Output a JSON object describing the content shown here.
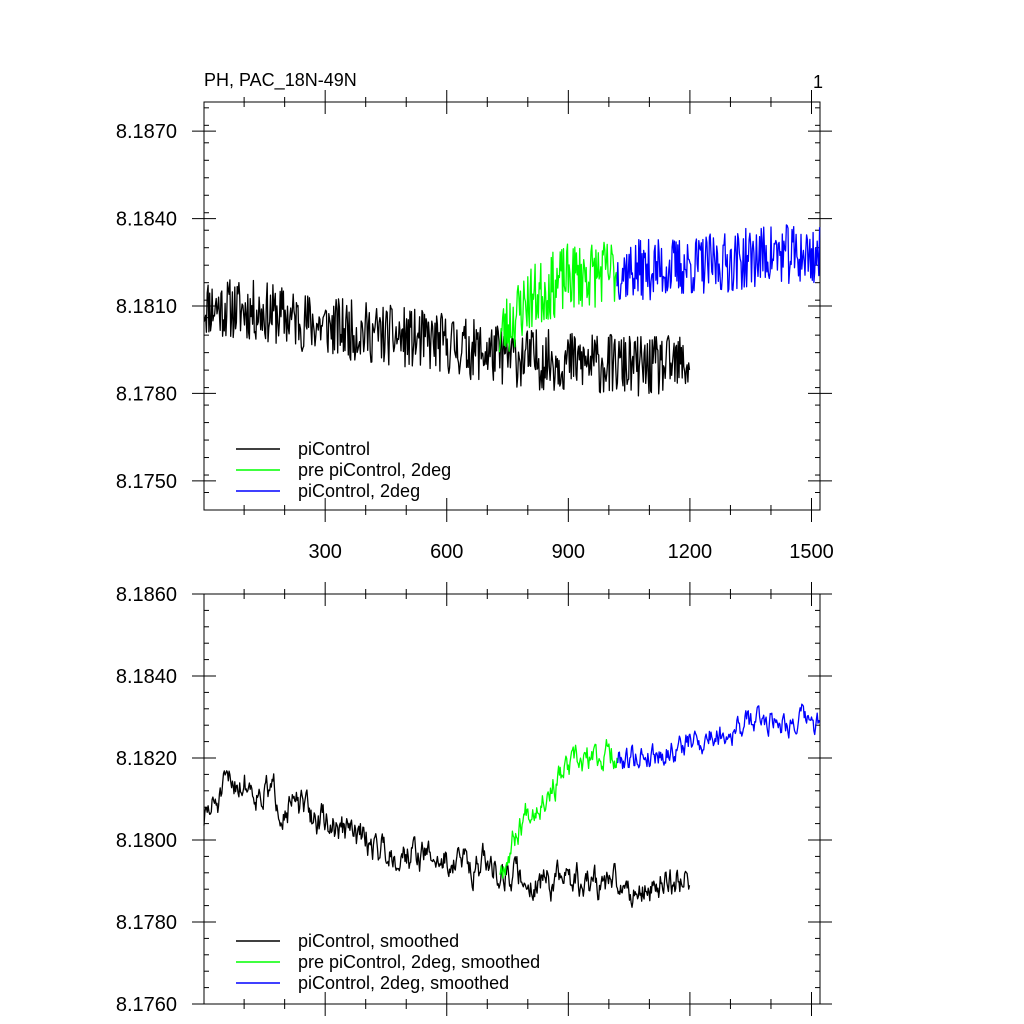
{
  "title": "PH, PAC_18N-49N",
  "panel_label": "1",
  "colors": {
    "piControl": "#000000",
    "pre_piControl_2deg": "#00ff00",
    "piControl_2deg": "#0000ff"
  },
  "chart_data": [
    {
      "type": "line",
      "title": "PH, PAC_18N-49N",
      "xlim": [
        1,
        1521
      ],
      "ylim": [
        8.174,
        8.188
      ],
      "x_ticks": [
        300,
        600,
        900,
        1200,
        1500
      ],
      "y_ticks": [
        8.175,
        8.178,
        8.181,
        8.184,
        8.187
      ],
      "y_tick_labels": [
        "8.1750",
        "8.1780",
        "8.1810",
        "8.1840",
        "8.1870"
      ],
      "x_tick_labels": [
        "300",
        "600",
        "900",
        "1200",
        "1500"
      ],
      "legend": [
        "piControl",
        "pre piControl, 2deg",
        "piControl, 2deg"
      ],
      "legend_position": "bottom-left",
      "series": [
        {
          "name": "piControl",
          "color": "#000000",
          "noise": 0.00105,
          "seed": 11,
          "anchors": [
            [
              1,
              8.181
            ],
            [
              150,
              8.1808
            ],
            [
              300,
              8.1803
            ],
            [
              450,
              8.18
            ],
            [
              600,
              8.1797
            ],
            [
              700,
              8.1794
            ],
            [
              800,
              8.1792
            ],
            [
              900,
              8.1791
            ],
            [
              1000,
              8.179
            ],
            [
              1100,
              8.1789
            ],
            [
              1200,
              8.179
            ]
          ]
        },
        {
          "name": "pre piControl, 2deg",
          "color": "#00ff00",
          "noise": 0.00115,
          "seed": 23,
          "anchors": [
            [
              730,
              8.18
            ],
            [
              800,
              8.1812
            ],
            [
              900,
              8.182
            ],
            [
              1020,
              8.1822
            ]
          ]
        },
        {
          "name": "piControl, 2deg",
          "color": "#0000ff",
          "noise": 0.00105,
          "seed": 37,
          "anchors": [
            [
              1020,
              8.1822
            ],
            [
              1150,
              8.1823
            ],
            [
              1300,
              8.1825
            ],
            [
              1400,
              8.1828
            ],
            [
              1521,
              8.1827
            ]
          ]
        }
      ]
    },
    {
      "type": "line",
      "xlim": [
        1,
        1521
      ],
      "ylim": [
        8.176,
        8.186
      ],
      "x_ticks": [
        300,
        600,
        900,
        1200,
        1500
      ],
      "y_ticks": [
        8.176,
        8.178,
        8.18,
        8.182,
        8.184,
        8.186
      ],
      "y_tick_labels": [
        "8.1760",
        "8.1780",
        "8.1800",
        "8.1820",
        "8.1840",
        "8.1860"
      ],
      "legend": [
        "piControl, smoothed",
        "pre piControl, 2deg, smoothed",
        "piControl, 2deg, smoothed"
      ],
      "legend_position": "bottom-left",
      "series": [
        {
          "name": "piControl, smoothed",
          "color": "#000000",
          "noise": 0.00055,
          "seed": 51,
          "anchors": [
            [
              1,
              8.1805
            ],
            [
              80,
              8.1815
            ],
            [
              150,
              8.1812
            ],
            [
              300,
              8.1804
            ],
            [
              450,
              8.1798
            ],
            [
              600,
              8.1795
            ],
            [
              700,
              8.1794
            ],
            [
              800,
              8.179
            ],
            [
              900,
              8.179
            ],
            [
              1000,
              8.1789
            ],
            [
              1100,
              8.1788
            ],
            [
              1200,
              8.1792
            ]
          ]
        },
        {
          "name": "pre piControl, 2deg, smoothed",
          "color": "#00ff00",
          "noise": 0.0005,
          "seed": 67,
          "anchors": [
            [
              730,
              8.1793
            ],
            [
              800,
              8.1808
            ],
            [
              900,
              8.1817
            ],
            [
              1020,
              8.1822
            ]
          ]
        },
        {
          "name": "piControl, 2deg, smoothed",
          "color": "#0000ff",
          "noise": 0.00045,
          "seed": 79,
          "anchors": [
            [
              1020,
              8.182
            ],
            [
              1150,
              8.1822
            ],
            [
              1300,
              8.1827
            ],
            [
              1400,
              8.183
            ],
            [
              1521,
              8.1828
            ]
          ]
        }
      ]
    }
  ]
}
